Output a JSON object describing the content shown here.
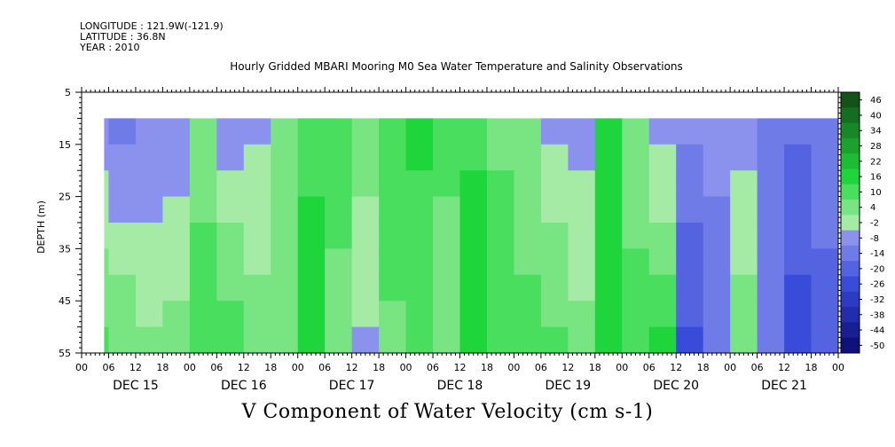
{
  "header": {
    "longitude": "LONGITUDE : 121.9W(-121.9)",
    "latitude": "LATITUDE : 36.8N",
    "year": "YEAR : 2010"
  },
  "chart_data": {
    "type": "heatmap",
    "title": "Hourly Gridded MBARI Mooring M0 Sea Water Temperature and Salinity Observations",
    "footer_title": "V Component of Water Velocity (cm s-1)",
    "ylabel": "DEPTH (m)",
    "xlabel": "",
    "y_ticks": [
      "5",
      "15",
      "25",
      "35",
      "45",
      "55"
    ],
    "x_hour_ticks": [
      "00",
      "06",
      "12",
      "18",
      "00",
      "06",
      "12",
      "18",
      "00",
      "06",
      "12",
      "18",
      "00",
      "06",
      "12",
      "18",
      "00",
      "06",
      "12",
      "18",
      "00",
      "06",
      "12",
      "18",
      "00",
      "06",
      "12",
      "18",
      "00"
    ],
    "x_day_labels": [
      "DEC 15",
      "DEC 16",
      "DEC 17",
      "DEC 18",
      "DEC 19",
      "DEC 20",
      "DEC 21"
    ],
    "colorbar_labels": [
      "46",
      "40",
      "34",
      "28",
      "22",
      "16",
      "10",
      "4",
      "-2",
      "-8",
      "-14",
      "-20",
      "-26",
      "-32",
      "-38",
      "-44",
      "-50"
    ],
    "value_range": [
      -50,
      50
    ],
    "depth_range": [
      5,
      55
    ],
    "data_depth_range": [
      10,
      55
    ],
    "time_range_days": [
      "DEC 15 00",
      "DEC 22 00"
    ],
    "colors": {
      "positive": "#1ed23c",
      "near_zero": "#a8e6a8",
      "negative": "#a4a8f4",
      "strong_negative": "#2a3cd0"
    },
    "periods": [
      {
        "start": "DEC 15 05",
        "end": "DEC 15 06",
        "surface": -6,
        "deep": 10
      },
      {
        "start": "DEC 15 06",
        "end": "DEC 15 12",
        "surface": -10,
        "deep": 8
      },
      {
        "start": "DEC 15 12",
        "end": "DEC 15 18",
        "surface": -8,
        "deep": 4
      },
      {
        "start": "DEC 15 18",
        "end": "DEC 16 00",
        "surface": -8,
        "deep": 6
      },
      {
        "start": "DEC 16 00",
        "end": "DEC 16 06",
        "surface": 6,
        "deep": 12
      },
      {
        "start": "DEC 16 06",
        "end": "DEC 16 12",
        "surface": -6,
        "deep": 12
      },
      {
        "start": "DEC 16 12",
        "end": "DEC 16 18",
        "surface": -4,
        "deep": 6
      },
      {
        "start": "DEC 16 18",
        "end": "DEC 17 00",
        "surface": 4,
        "deep": 4
      },
      {
        "start": "DEC 17 00",
        "end": "DEC 17 06",
        "surface": 14,
        "deep": 16
      },
      {
        "start": "DEC 17 06",
        "end": "DEC 17 12",
        "surface": 12,
        "deep": 6
      },
      {
        "start": "DEC 17 12",
        "end": "DEC 17 18",
        "surface": 6,
        "deep": -4
      },
      {
        "start": "DEC 17 18",
        "end": "DEC 18 00",
        "surface": 12,
        "deep": 8
      },
      {
        "start": "DEC 18 00",
        "end": "DEC 18 06",
        "surface": 16,
        "deep": 10
      },
      {
        "start": "DEC 18 06",
        "end": "DEC 18 12",
        "surface": 10,
        "deep": 6
      },
      {
        "start": "DEC 18 12",
        "end": "DEC 18 18",
        "surface": 14,
        "deep": 18
      },
      {
        "start": "DEC 18 18",
        "end": "DEC 19 00",
        "surface": 8,
        "deep": 12
      },
      {
        "start": "DEC 19 00",
        "end": "DEC 19 06",
        "surface": 6,
        "deep": 10
      },
      {
        "start": "DEC 19 06",
        "end": "DEC 19 12",
        "surface": -4,
        "deep": 10
      },
      {
        "start": "DEC 19 12",
        "end": "DEC 19 18",
        "surface": -6,
        "deep": 6
      },
      {
        "start": "DEC 19 18",
        "end": "DEC 20 00",
        "surface": 16,
        "deep": 16
      },
      {
        "start": "DEC 20 00",
        "end": "DEC 20 06",
        "surface": 4,
        "deep": 12
      },
      {
        "start": "DEC 20 06",
        "end": "DEC 20 12",
        "surface": -6,
        "deep": 16
      },
      {
        "start": "DEC 20 12",
        "end": "DEC 20 18",
        "surface": -8,
        "deep": -22
      },
      {
        "start": "DEC 20 18",
        "end": "DEC 21 00",
        "surface": -6,
        "deep": -14
      },
      {
        "start": "DEC 21 00",
        "end": "DEC 21 06",
        "surface": -6,
        "deep": 8
      },
      {
        "start": "DEC 21 06",
        "end": "DEC 21 12",
        "surface": -12,
        "deep": -14
      },
      {
        "start": "DEC 21 12",
        "end": "DEC 21 18",
        "surface": -14,
        "deep": -24
      },
      {
        "start": "DEC 21 18",
        "end": "DEC 22 00",
        "surface": -10,
        "deep": -18
      }
    ]
  }
}
